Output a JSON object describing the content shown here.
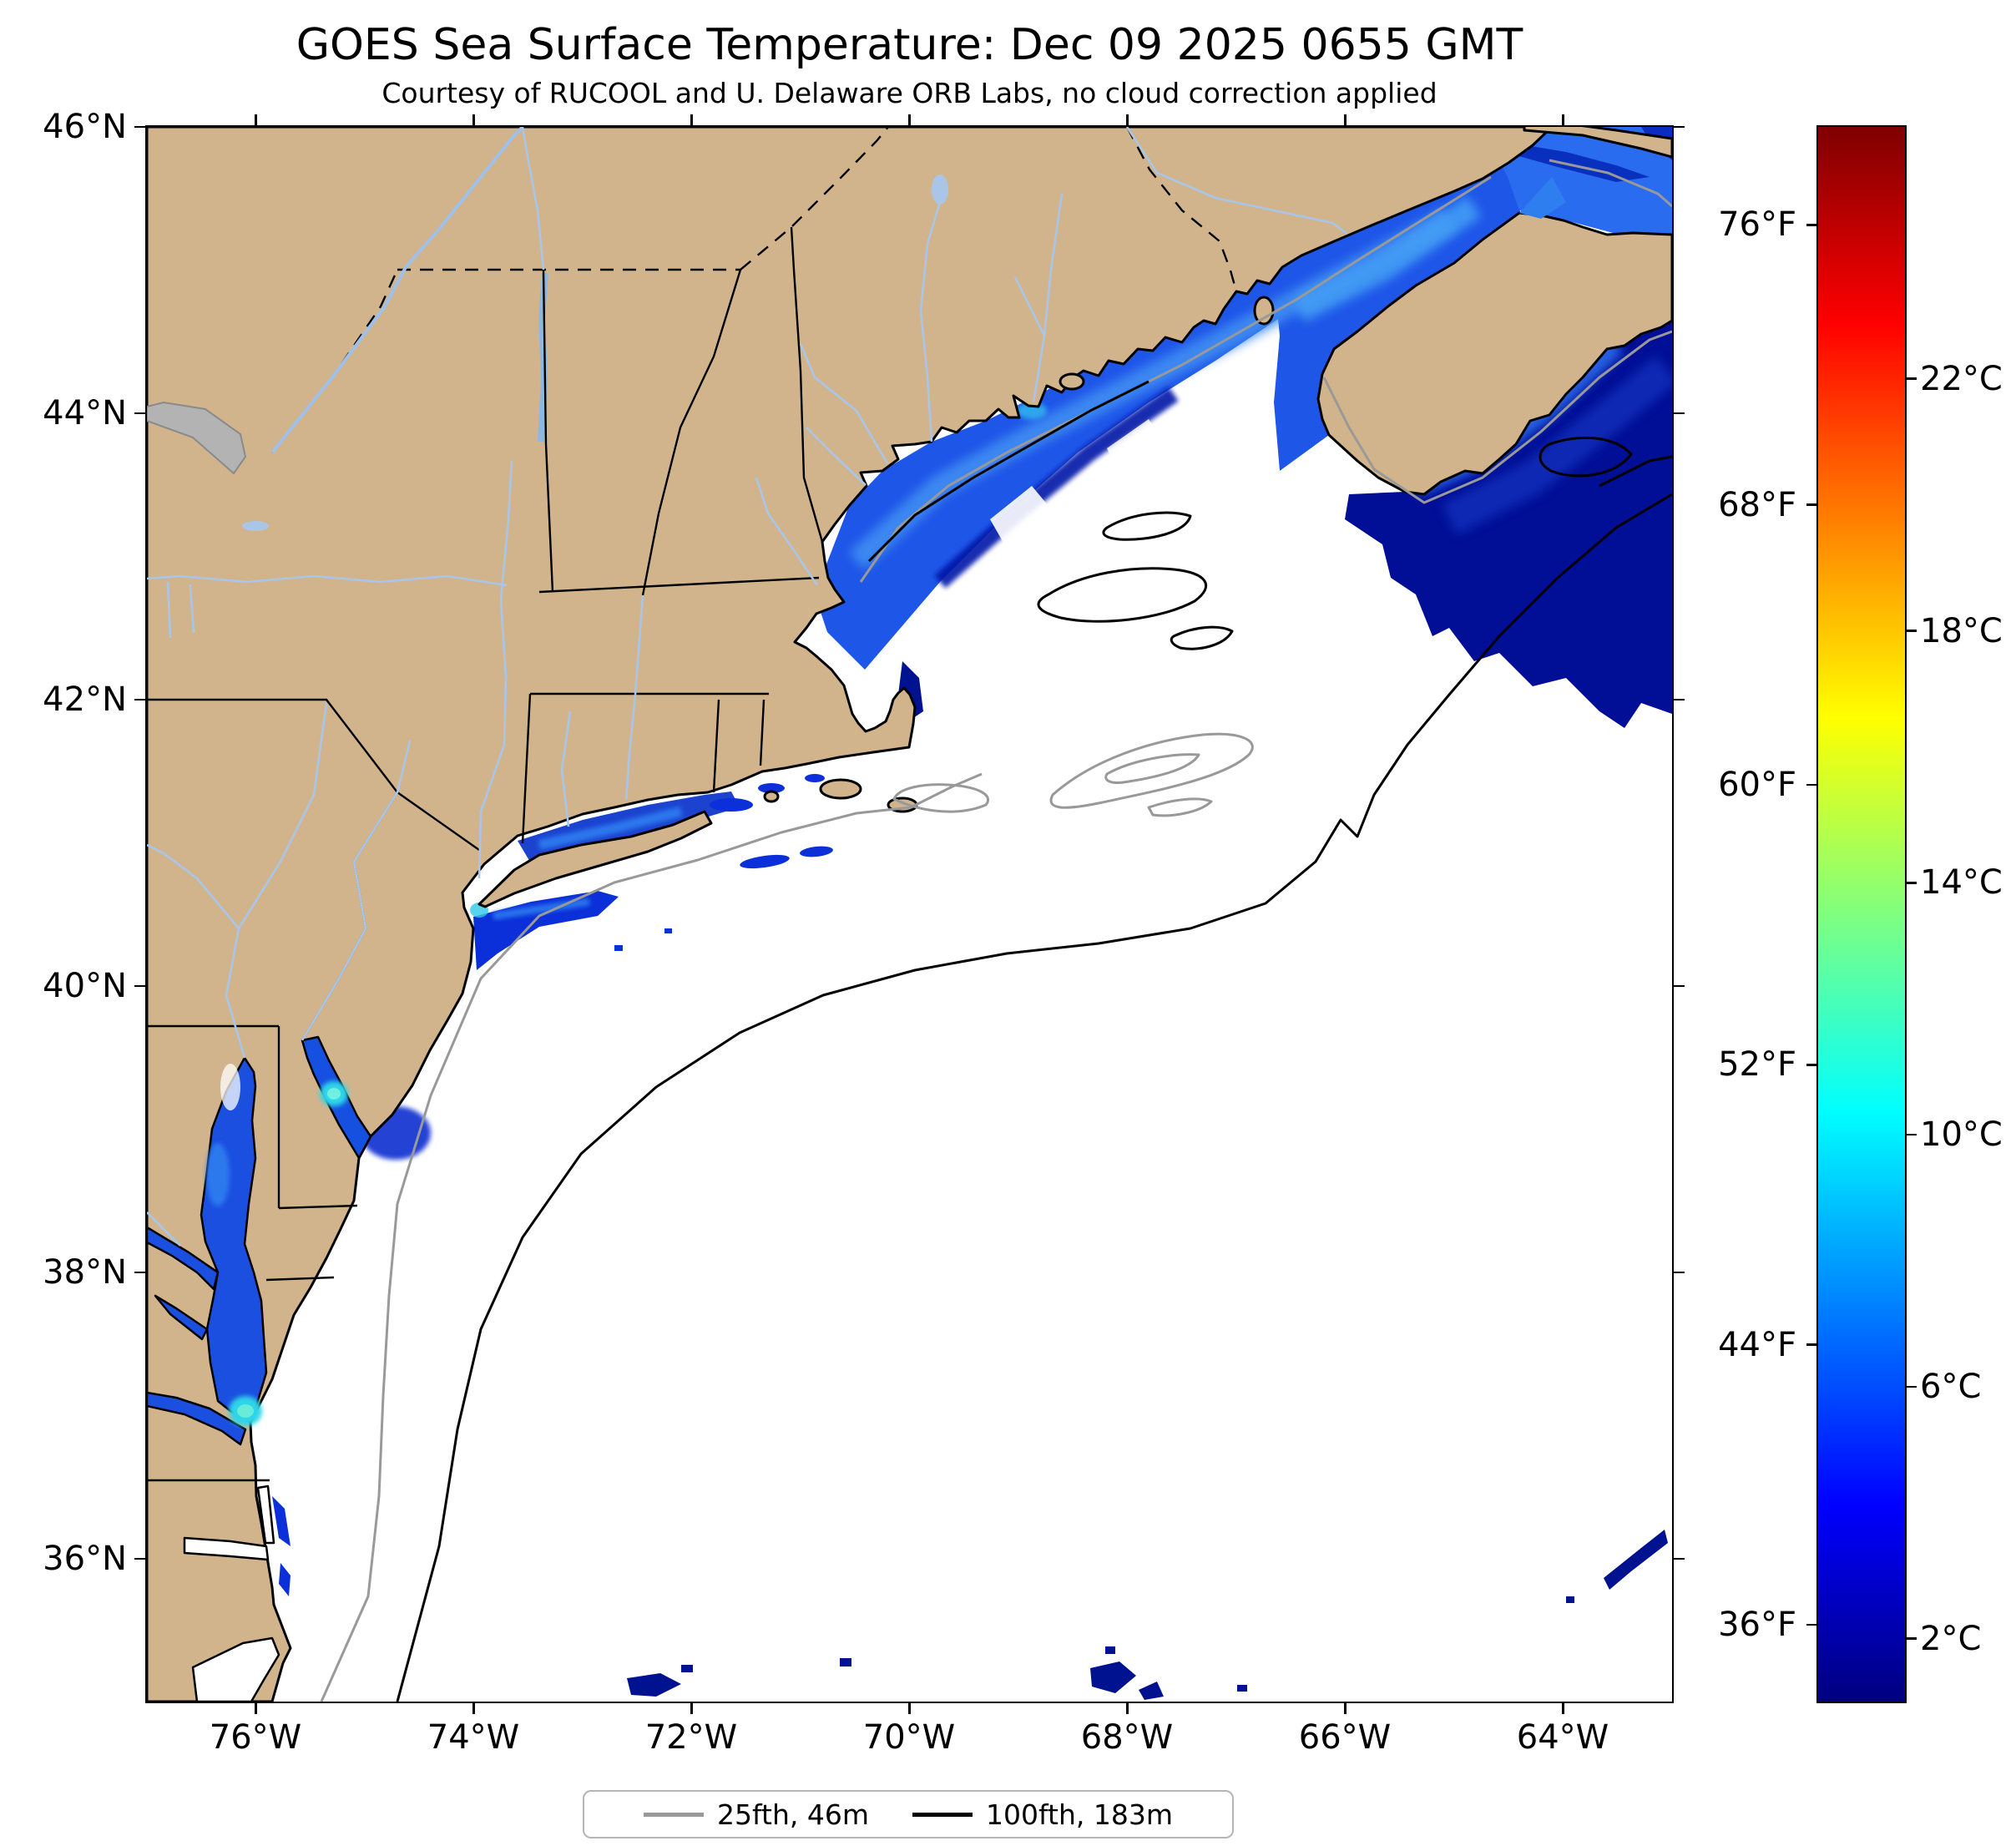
{
  "figure": {
    "title": "GOES Sea Surface Temperature: Dec 09 2025 0655 GMT",
    "subtitle": "Courtesy of RUCOOL and U. Delaware ORB Labs, no cloud correction applied"
  },
  "chart_data": {
    "type": "heatmap",
    "title": "GOES Sea Surface Temperature: Dec 09 2025 0655 GMT",
    "subtitle": "Courtesy of RUCOOL and U. Delaware ORB Labs, no cloud correction applied",
    "projection": "longitude/latitude map of US Northeast and Canadian Maritimes coast",
    "x_axis": {
      "label": "Longitude",
      "ticks": [
        "76°W",
        "74°W",
        "72°W",
        "70°W",
        "68°W",
        "66°W",
        "64°W"
      ],
      "range_deg_west": [
        77,
        63
      ]
    },
    "y_axis": {
      "label": "Latitude",
      "ticks": [
        "46°N",
        "44°N",
        "42°N",
        "40°N",
        "38°N",
        "36°N"
      ],
      "range_deg_north": [
        35,
        46
      ]
    },
    "colorbar": {
      "colormap": "jet",
      "range_celsius": [
        1,
        26
      ],
      "ticks_f": [
        "76°F",
        "68°F",
        "60°F",
        "52°F",
        "44°F",
        "36°F"
      ],
      "ticks_c": [
        "22°C",
        "18°C",
        "14°C",
        "10°C",
        "6°C",
        "2°C"
      ]
    },
    "legend": {
      "items": [
        {
          "label": "25fth, 46m",
          "color": "#999999"
        },
        {
          "label": "100fth, 183m",
          "color": "#000000"
        }
      ]
    },
    "sst_features": [
      {
        "region": "Gulf of Maine coastal band",
        "approx_temp_c": "5-8"
      },
      {
        "region": "Bay of Fundy",
        "approx_temp_c": "6-8"
      },
      {
        "region": "Scotian Shelf / offshore Nova Scotia",
        "approx_temp_c": "2-5"
      },
      {
        "region": "Long Island Sound",
        "approx_temp_c": "5-7"
      },
      {
        "region": "New York Bight plume",
        "approx_temp_c": "4-7"
      },
      {
        "region": "Chesapeake Bay and mouth",
        "approx_temp_c": "6-11"
      },
      {
        "region": "Delaware Bay",
        "approx_temp_c": "6-10"
      },
      {
        "region": "Scattered patches near 35-36°N",
        "approx_temp_c": "2-4"
      },
      {
        "region": "Open shelf and ocean",
        "approx_temp_c": "cloud-masked (white)"
      }
    ]
  },
  "colors": {
    "land": "#d2b48c",
    "masked_ocean": "#ffffff",
    "lake_no_data": "#b3b3b3",
    "river": "#a9c6e8",
    "contour_25fth": "#999999",
    "contour_100fth": "#000000"
  }
}
